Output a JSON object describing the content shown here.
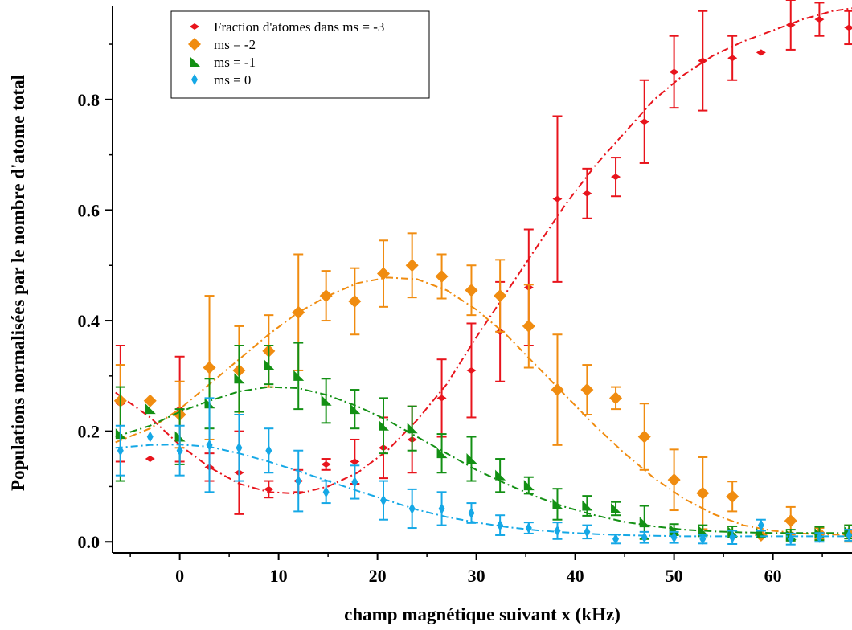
{
  "chart_data": {
    "type": "scatter",
    "xlabel": "champ magnétique suivant x (kHz)",
    "ylabel": "Populations normalisées par le nombre d'atome total",
    "xlim": [
      -6.8,
      68
    ],
    "ylim": [
      -0.02,
      0.98
    ],
    "xticks": [
      0,
      10,
      20,
      30,
      40,
      50,
      60
    ],
    "yticks": [
      0.0,
      0.2,
      0.4,
      0.6,
      0.8
    ],
    "grid": false,
    "legend_position": "top-left",
    "series": [
      {
        "name": "Fraction d'atomes dans ms = -3",
        "color": "#e8141c",
        "marker": "small-diamond",
        "x": [
          -6.0,
          -3.0,
          0.0,
          3.0,
          6.0,
          9.0,
          12.0,
          14.8,
          17.7,
          20.6,
          23.5,
          26.5,
          29.5,
          32.4,
          35.3,
          38.2,
          41.2,
          44.1,
          47.0,
          50.0,
          52.9,
          55.9,
          58.8,
          61.8,
          64.7,
          67.7
        ],
        "y": [
          0.25,
          0.15,
          0.24,
          0.135,
          0.125,
          0.095,
          0.11,
          0.14,
          0.145,
          0.17,
          0.185,
          0.26,
          0.31,
          0.38,
          0.46,
          0.62,
          0.63,
          0.66,
          0.76,
          0.85,
          0.87,
          0.875,
          0.885,
          0.935,
          0.945,
          0.93
        ],
        "err": [
          0.105,
          0,
          0.095,
          0.025,
          0.075,
          0.015,
          0.02,
          0.01,
          0.04,
          0.055,
          0.06,
          0.07,
          0.085,
          0.09,
          0.105,
          0.15,
          0.045,
          0.035,
          0.075,
          0.065,
          0.09,
          0.04,
          0,
          0.045,
          0.03,
          0.03
        ],
        "fit": {
          "x": [
            -6.5,
            -3,
            0,
            3,
            6,
            9,
            12,
            15,
            18,
            21,
            24,
            27,
            30,
            33,
            36,
            39,
            42,
            45,
            48,
            51,
            54,
            57,
            60,
            63,
            66,
            68
          ],
          "y": [
            0.27,
            0.225,
            0.175,
            0.135,
            0.105,
            0.09,
            0.087,
            0.1,
            0.125,
            0.165,
            0.22,
            0.285,
            0.37,
            0.45,
            0.53,
            0.61,
            0.68,
            0.74,
            0.8,
            0.845,
            0.88,
            0.905,
            0.925,
            0.945,
            0.96,
            0.965
          ]
        }
      },
      {
        "name": "ms = -2",
        "color": "#f08c10",
        "marker": "diamond",
        "x": [
          -6.0,
          -3.0,
          0.0,
          3.0,
          6.0,
          9.0,
          12.0,
          14.8,
          17.7,
          20.6,
          23.5,
          26.5,
          29.5,
          32.4,
          35.3,
          38.2,
          41.2,
          44.1,
          47.0,
          50.0,
          52.9,
          55.9,
          58.8,
          61.8,
          64.7,
          67.7
        ],
        "y": [
          0.255,
          0.255,
          0.23,
          0.315,
          0.31,
          0.345,
          0.415,
          0.445,
          0.435,
          0.485,
          0.5,
          0.48,
          0.455,
          0.445,
          0.39,
          0.275,
          0.275,
          0.26,
          0.19,
          0.112,
          0.088,
          0.082,
          0.012,
          0.038,
          0.015,
          0.015
        ],
        "err": [
          0.065,
          0,
          0.06,
          0.13,
          0.08,
          0.065,
          0.105,
          0.045,
          0.06,
          0.06,
          0.058,
          0.04,
          0.045,
          0.065,
          0.075,
          0.1,
          0.045,
          0.02,
          0.06,
          0.055,
          0.065,
          0.027,
          0,
          0.025,
          0.01,
          0.015
        ],
        "fit": {
          "x": [
            -6.5,
            -3,
            0,
            3,
            6,
            9,
            12,
            15,
            18,
            21,
            24,
            27,
            30,
            33,
            36,
            39,
            42,
            45,
            48,
            51,
            54,
            57,
            60,
            63,
            66,
            68
          ],
          "y": [
            0.18,
            0.205,
            0.24,
            0.285,
            0.33,
            0.375,
            0.415,
            0.445,
            0.468,
            0.478,
            0.475,
            0.455,
            0.42,
            0.375,
            0.32,
            0.265,
            0.21,
            0.16,
            0.115,
            0.078,
            0.05,
            0.03,
            0.02,
            0.015,
            0.013,
            0.013
          ]
        }
      },
      {
        "name": "ms = -1",
        "color": "#139014",
        "marker": "triangle",
        "x": [
          -6.0,
          -3.0,
          0.0,
          3.0,
          6.0,
          9.0,
          12.0,
          14.8,
          17.7,
          20.6,
          23.5,
          26.5,
          29.5,
          32.4,
          35.3,
          38.2,
          41.2,
          44.1,
          47.0,
          50.0,
          52.9,
          55.9,
          58.8,
          61.8,
          64.7,
          67.7
        ],
        "y": [
          0.195,
          0.24,
          0.19,
          0.25,
          0.295,
          0.32,
          0.3,
          0.255,
          0.24,
          0.21,
          0.205,
          0.16,
          0.15,
          0.12,
          0.102,
          0.068,
          0.065,
          0.06,
          0.035,
          0.022,
          0.02,
          0.018,
          0.015,
          0.012,
          0.015,
          0.018
        ],
        "err": [
          0.085,
          0,
          0.05,
          0.045,
          0.06,
          0.035,
          0.06,
          0.04,
          0.035,
          0.05,
          0.04,
          0.035,
          0.04,
          0.03,
          0.015,
          0.028,
          0.018,
          0.012,
          0.03,
          0.01,
          0.01,
          0.01,
          0.005,
          0.01,
          0.012,
          0.012
        ],
        "fit": {
          "x": [
            -6.5,
            -3,
            0,
            3,
            6,
            9,
            12,
            15,
            18,
            21,
            24,
            27,
            30,
            33,
            36,
            39,
            42,
            45,
            48,
            51,
            54,
            57,
            60,
            63,
            66,
            68
          ],
          "y": [
            0.19,
            0.21,
            0.235,
            0.255,
            0.272,
            0.28,
            0.278,
            0.265,
            0.245,
            0.22,
            0.19,
            0.16,
            0.13,
            0.105,
            0.082,
            0.063,
            0.048,
            0.036,
            0.028,
            0.022,
            0.019,
            0.017,
            0.016,
            0.016,
            0.016,
            0.016
          ]
        }
      },
      {
        "name": "ms = 0",
        "color": "#15a8e6",
        "marker": "narrow-diamond",
        "x": [
          -6.0,
          -3.0,
          0.0,
          3.0,
          6.0,
          9.0,
          12.0,
          14.8,
          17.7,
          20.6,
          23.5,
          26.5,
          29.5,
          32.4,
          35.3,
          38.2,
          41.2,
          44.1,
          47.0,
          50.0,
          52.9,
          55.9,
          58.8,
          61.8,
          64.7,
          67.7
        ],
        "y": [
          0.165,
          0.19,
          0.165,
          0.175,
          0.17,
          0.165,
          0.11,
          0.09,
          0.108,
          0.075,
          0.06,
          0.06,
          0.052,
          0.03,
          0.025,
          0.02,
          0.018,
          0.005,
          0.008,
          0.008,
          0.005,
          0.008,
          0.03,
          0.005,
          0.008,
          0.012
        ],
        "err": [
          0.045,
          0,
          0.045,
          0.085,
          0.06,
          0.04,
          0.055,
          0.02,
          0.03,
          0.035,
          0.035,
          0.03,
          0.018,
          0.018,
          0.01,
          0.015,
          0.012,
          0.008,
          0.01,
          0.01,
          0.008,
          0.012,
          0.01,
          0.01,
          0.008,
          0.01
        ],
        "fit": {
          "x": [
            -6.5,
            -3,
            0,
            3,
            6,
            9,
            12,
            15,
            18,
            21,
            24,
            27,
            30,
            33,
            36,
            39,
            42,
            45,
            48,
            51,
            54,
            57,
            60,
            63,
            66,
            68
          ],
          "y": [
            0.17,
            0.175,
            0.176,
            0.172,
            0.16,
            0.145,
            0.128,
            0.11,
            0.092,
            0.075,
            0.058,
            0.045,
            0.035,
            0.027,
            0.021,
            0.017,
            0.014,
            0.012,
            0.011,
            0.01,
            0.01,
            0.01,
            0.01,
            0.01,
            0.01,
            0.01
          ]
        }
      }
    ]
  }
}
